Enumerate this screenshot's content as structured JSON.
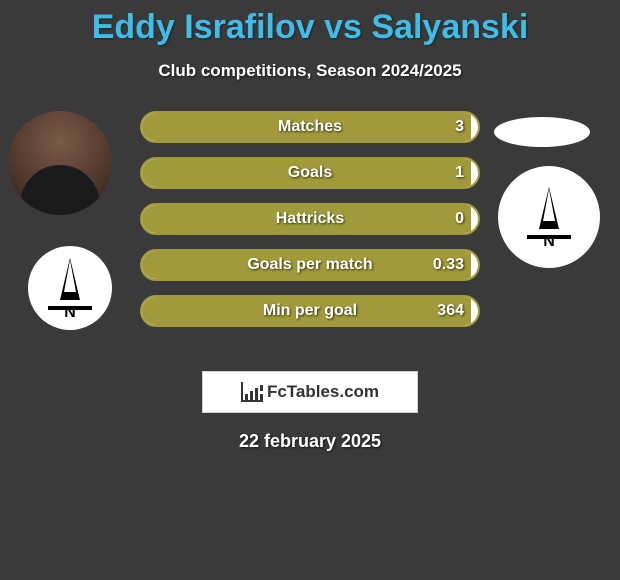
{
  "title": "Eddy Israfilov vs Salyanski",
  "subtitle": "Club competitions, Season 2024/2025",
  "date": "22 february 2025",
  "brand": {
    "name": "FcTables.com"
  },
  "colors": {
    "background": "#3a3a3a",
    "title": "#3fbce8",
    "bar_fill": "#a09a3a",
    "bar_track": "#fdfdfb",
    "bar_border": "#a09a3a",
    "text": "#ffffff"
  },
  "stats": [
    {
      "label": "Matches",
      "value": "3",
      "fill_pct": 98
    },
    {
      "label": "Goals",
      "value": "1",
      "fill_pct": 98
    },
    {
      "label": "Hattricks",
      "value": "0",
      "fill_pct": 98
    },
    {
      "label": "Goals per match",
      "value": "0.33",
      "fill_pct": 98
    },
    {
      "label": "Min per goal",
      "value": "364",
      "fill_pct": 98
    }
  ],
  "player_club_badge_letter": "N",
  "team_badge_letter": "N"
}
